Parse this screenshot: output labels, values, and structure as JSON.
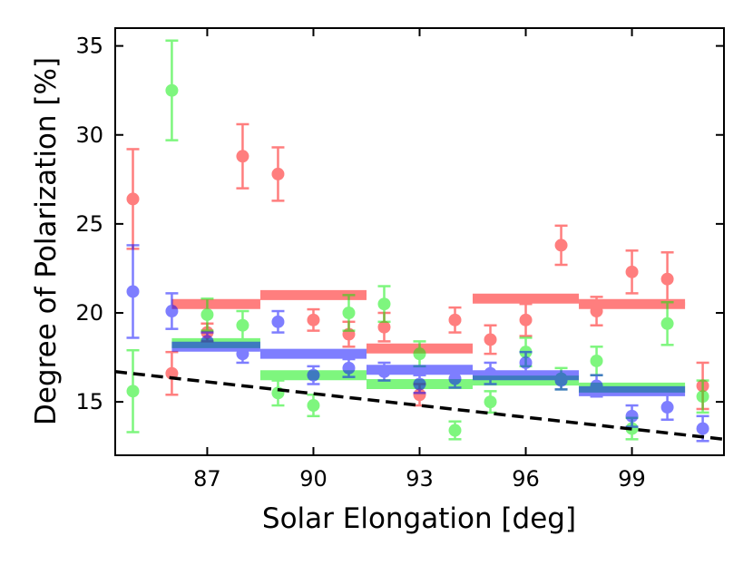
{
  "chart_data": {
    "type": "scatter",
    "title": "",
    "xlabel": "Solar Elongation [deg]",
    "ylabel": "Degree of Polarization [%]",
    "xlim": [
      84.4,
      101.6
    ],
    "ylim": [
      12.0,
      36.0
    ],
    "xticks": [
      87,
      90,
      93,
      96,
      99
    ],
    "yticks": [
      15,
      20,
      25,
      30,
      35
    ],
    "grid": false,
    "legend": "none",
    "series": [
      {
        "color": "#ff0000",
        "points": [
          {
            "x": 84.9,
            "y": 26.4,
            "lo": 23.6,
            "hi": 29.2
          },
          {
            "x": 86.0,
            "y": 16.6,
            "lo": 15.4,
            "hi": 17.8
          },
          {
            "x": 87.0,
            "y": 18.9,
            "lo": 18.4,
            "hi": 19.4
          },
          {
            "x": 88.0,
            "y": 28.8,
            "lo": 27.0,
            "hi": 30.6
          },
          {
            "x": 89.0,
            "y": 27.8,
            "lo": 26.3,
            "hi": 29.3
          },
          {
            "x": 90.0,
            "y": 19.6,
            "lo": 19.0,
            "hi": 20.2
          },
          {
            "x": 91.0,
            "y": 18.8,
            "lo": 18.1,
            "hi": 19.5
          },
          {
            "x": 92.0,
            "y": 19.2,
            "lo": 18.4,
            "hi": 20.0
          },
          {
            "x": 93.0,
            "y": 15.4,
            "lo": 14.8,
            "hi": 16.0
          },
          {
            "x": 94.0,
            "y": 19.6,
            "lo": 18.9,
            "hi": 20.3
          },
          {
            "x": 95.0,
            "y": 18.5,
            "lo": 17.7,
            "hi": 19.3
          },
          {
            "x": 96.0,
            "y": 19.6,
            "lo": 18.7,
            "hi": 20.5
          },
          {
            "x": 97.0,
            "y": 23.8,
            "lo": 22.7,
            "hi": 24.9
          },
          {
            "x": 98.0,
            "y": 20.1,
            "lo": 19.3,
            "hi": 20.9
          },
          {
            "x": 99.0,
            "y": 22.3,
            "lo": 21.1,
            "hi": 23.5
          },
          {
            "x": 100.0,
            "y": 21.9,
            "lo": 20.4,
            "hi": 23.4
          },
          {
            "x": 101.0,
            "y": 15.9,
            "lo": 14.6,
            "hi": 17.2
          }
        ],
        "bins": [
          {
            "x0": 86.0,
            "x1": 88.5,
            "y": 20.5
          },
          {
            "x0": 88.5,
            "x1": 91.5,
            "y": 21.0
          },
          {
            "x0": 91.5,
            "x1": 94.5,
            "y": 18.0
          },
          {
            "x0": 94.5,
            "x1": 97.5,
            "y": 20.8
          },
          {
            "x0": 97.5,
            "x1": 100.5,
            "y": 20.5
          }
        ]
      },
      {
        "color": "#00ee00",
        "points": [
          {
            "x": 84.9,
            "y": 15.6,
            "lo": 13.3,
            "hi": 17.9
          },
          {
            "x": 86.0,
            "y": 32.5,
            "lo": 29.7,
            "hi": 35.3
          },
          {
            "x": 87.0,
            "y": 19.9,
            "lo": 19.0,
            "hi": 20.8
          },
          {
            "x": 88.0,
            "y": 19.3,
            "lo": 18.5,
            "hi": 20.1
          },
          {
            "x": 89.0,
            "y": 15.5,
            "lo": 14.8,
            "hi": 16.2
          },
          {
            "x": 90.0,
            "y": 14.8,
            "lo": 14.2,
            "hi": 15.4
          },
          {
            "x": 91.0,
            "y": 20.0,
            "lo": 19.0,
            "hi": 21.0
          },
          {
            "x": 92.0,
            "y": 20.5,
            "lo": 19.5,
            "hi": 21.5
          },
          {
            "x": 93.0,
            "y": 17.7,
            "lo": 17.0,
            "hi": 18.4
          },
          {
            "x": 94.0,
            "y": 13.4,
            "lo": 12.9,
            "hi": 13.9
          },
          {
            "x": 95.0,
            "y": 15.0,
            "lo": 14.4,
            "hi": 15.6
          },
          {
            "x": 96.0,
            "y": 17.8,
            "lo": 17.0,
            "hi": 18.6
          },
          {
            "x": 97.0,
            "y": 16.3,
            "lo": 15.7,
            "hi": 16.9
          },
          {
            "x": 98.0,
            "y": 17.3,
            "lo": 16.5,
            "hi": 18.1
          },
          {
            "x": 99.0,
            "y": 13.5,
            "lo": 12.9,
            "hi": 14.1
          },
          {
            "x": 100.0,
            "y": 19.4,
            "lo": 18.2,
            "hi": 20.6
          },
          {
            "x": 101.0,
            "y": 15.3,
            "lo": 14.4,
            "hi": 16.2
          }
        ],
        "bins": [
          {
            "x0": 86.0,
            "x1": 88.5,
            "y": 18.3
          },
          {
            "x0": 88.5,
            "x1": 91.5,
            "y": 16.5
          },
          {
            "x0": 91.5,
            "x1": 94.5,
            "y": 16.0
          },
          {
            "x0": 94.5,
            "x1": 97.5,
            "y": 16.2
          },
          {
            "x0": 97.5,
            "x1": 100.5,
            "y": 15.8
          }
        ]
      },
      {
        "color": "#0000ff",
        "points": [
          {
            "x": 84.9,
            "y": 21.2,
            "lo": 18.6,
            "hi": 23.8
          },
          {
            "x": 86.0,
            "y": 20.1,
            "lo": 19.1,
            "hi": 21.1
          },
          {
            "x": 87.0,
            "y": 18.4,
            "lo": 17.9,
            "hi": 18.9
          },
          {
            "x": 88.0,
            "y": 17.7,
            "lo": 17.2,
            "hi": 18.2
          },
          {
            "x": 89.0,
            "y": 19.5,
            "lo": 18.9,
            "hi": 20.1
          },
          {
            "x": 90.0,
            "y": 16.5,
            "lo": 16.0,
            "hi": 17.0
          },
          {
            "x": 91.0,
            "y": 16.9,
            "lo": 16.4,
            "hi": 17.4
          },
          {
            "x": 92.0,
            "y": 16.7,
            "lo": 16.2,
            "hi": 17.2
          },
          {
            "x": 93.0,
            "y": 16.0,
            "lo": 15.5,
            "hi": 16.5
          },
          {
            "x": 94.0,
            "y": 16.3,
            "lo": 15.8,
            "hi": 16.8
          },
          {
            "x": 95.0,
            "y": 16.6,
            "lo": 16.0,
            "hi": 17.2
          },
          {
            "x": 96.0,
            "y": 17.2,
            "lo": 16.6,
            "hi": 17.8
          },
          {
            "x": 97.0,
            "y": 16.2,
            "lo": 15.7,
            "hi": 16.7
          },
          {
            "x": 98.0,
            "y": 15.9,
            "lo": 15.3,
            "hi": 16.5
          },
          {
            "x": 99.0,
            "y": 14.2,
            "lo": 13.6,
            "hi": 14.8
          },
          {
            "x": 100.0,
            "y": 14.7,
            "lo": 14.0,
            "hi": 15.4
          },
          {
            "x": 101.0,
            "y": 13.5,
            "lo": 12.8,
            "hi": 14.2
          }
        ],
        "bins": [
          {
            "x0": 86.0,
            "x1": 88.5,
            "y": 18.1
          },
          {
            "x0": 88.5,
            "x1": 91.5,
            "y": 17.7
          },
          {
            "x0": 91.5,
            "x1": 94.5,
            "y": 16.8
          },
          {
            "x0": 94.5,
            "x1": 97.5,
            "y": 16.5
          },
          {
            "x0": 97.5,
            "x1": 100.5,
            "y": 15.6
          }
        ]
      }
    ],
    "reference_line": {
      "style": "dashed",
      "color": "#000000",
      "x": [
        84.4,
        101.6
      ],
      "y": [
        16.7,
        12.9
      ]
    }
  }
}
